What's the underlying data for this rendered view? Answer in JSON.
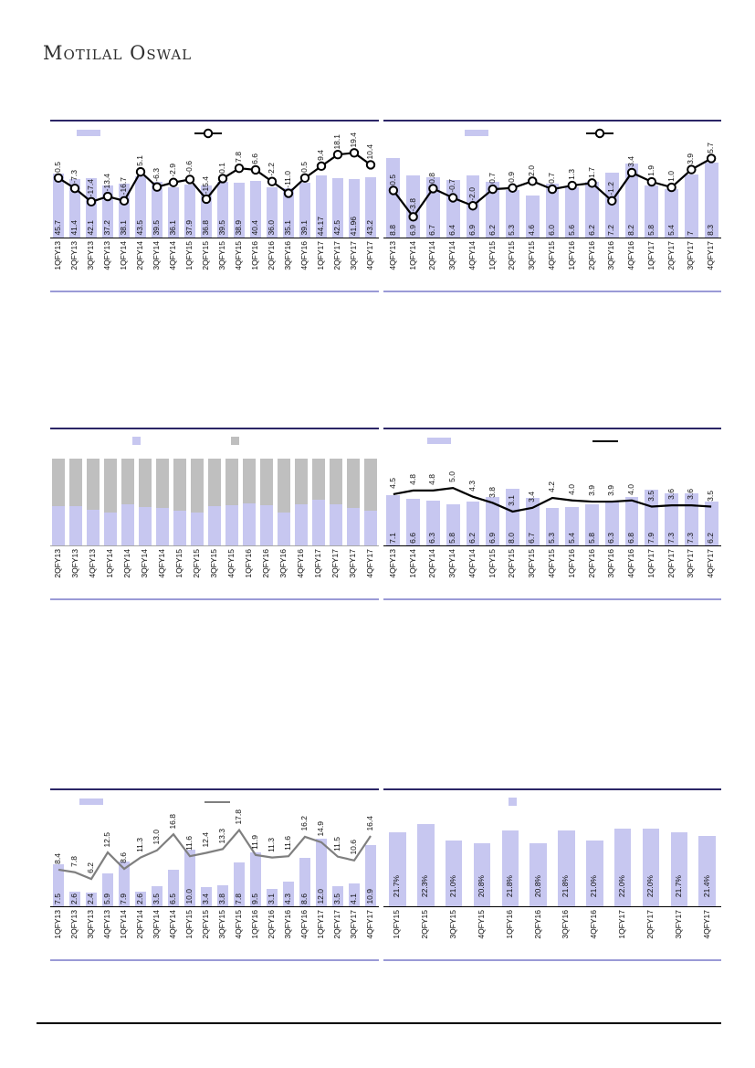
{
  "page": {
    "brand": "Motilal Oswal"
  },
  "colors": {
    "bar_fill": "#c7c7f0",
    "stack_gray_fill": "#bfbfbf",
    "line_black": "#000000",
    "line_gray": "#7f7f7f",
    "chart_top_rule": "#2b2566",
    "chart_bottom_rule": "#9a9ad6",
    "footer_rule": "#000000"
  },
  "chart_data": [
    {
      "name": "top-left-bar-line",
      "type": "bar+line",
      "legend_swatches": [
        "bar",
        "line-marker"
      ],
      "categories": [
        "1QFY13",
        "2QFY13",
        "3QFY13",
        "4QFY13",
        "1QFY14",
        "2QFY14",
        "3QFY14",
        "4QFY14",
        "1QFY15",
        "2QFY15",
        "3QFY15",
        "4QFY15",
        "1QFY16",
        "2QFY16",
        "3QFY16",
        "4QFY16",
        "1QFY17",
        "2QFY17",
        "3QFY17",
        "4QFY17"
      ],
      "bar_labels": [
        "45.7",
        "41.4",
        "42.1",
        "37.2",
        "38.1",
        "43.5",
        "39.5",
        "36.1",
        "37.9",
        "36.8",
        "39.5",
        "38.9",
        "40.4",
        "36.0",
        "35.1",
        "39.1",
        "44.17",
        "42.5",
        "41.96",
        "43.2"
      ],
      "line_labels": [
        "0.5",
        "-7.3",
        "-17.4",
        "-13.4",
        "-16.7",
        "5.1",
        "-6.3",
        "-2.9",
        "-0.6",
        "-15.4",
        "0.1",
        "7.8",
        "6.6",
        "-2.2",
        "-11.0",
        "0.5",
        "9.4",
        "18.1",
        "19.4",
        "10.4"
      ]
    },
    {
      "name": "top-right-bar-line",
      "type": "bar+line",
      "legend_swatches": [
        "bar",
        "line-marker"
      ],
      "categories": [
        "4QFY13",
        "1QFY14",
        "2QFY14",
        "3QFY14",
        "4QFY14",
        "1QFY15",
        "2QFY15",
        "3QFY15",
        "4QFY15",
        "1QFY16",
        "2QFY16",
        "3QFY16",
        "4QFY16",
        "1QFY17",
        "2QFY17",
        "3QFY17",
        "4QFY17"
      ],
      "bar_labels": [
        "8.8",
        "6.9",
        "6.7",
        "6.4",
        "6.9",
        "6.2",
        "5.3",
        "4.6",
        "6.0",
        "5.6",
        "6.2",
        "7.2",
        "8.2",
        "5.8",
        "5.4",
        "7",
        "8.3"
      ],
      "line_labels": [
        "0.5",
        "-3.8",
        "0.8",
        "-0.7",
        "-2.0",
        "0.7",
        "0.9",
        "2.0",
        "0.7",
        "1.3",
        "1.7",
        "-1.2",
        "3.4",
        "1.9",
        "1.0",
        "3.9",
        "5.7"
      ]
    },
    {
      "name": "mid-left-stacked",
      "type": "stacked-bar",
      "legend_swatches": [
        "purple-square",
        "gray-square"
      ],
      "categories": [
        "2QFY13",
        "3QFY13",
        "4QFY13",
        "1QFY14",
        "2QFY14",
        "3QFY14",
        "4QFY14",
        "1QFY15",
        "2QFY15",
        "3QFY15",
        "4QFY15",
        "1QFY16",
        "2QFY16",
        "3QFY16",
        "4QFY16",
        "1QFY17",
        "2QFY17",
        "3QFY17",
        "4QFY17"
      ],
      "note": "no data labels printed; purple share estimated from pixels, gray = remainder to 100",
      "purple_pct_est": [
        45,
        45,
        41,
        38,
        47,
        44,
        43,
        40,
        38,
        45,
        46,
        49,
        46,
        38,
        47,
        53,
        48,
        43,
        40
      ],
      "total_pct": 100
    },
    {
      "name": "mid-right-bar-line",
      "type": "bar+line",
      "legend_swatches": [
        "bar",
        "line-plain"
      ],
      "categories": [
        "4QFY13",
        "1QFY14",
        "2QFY14",
        "3QFY14",
        "4QFY14",
        "1QFY15",
        "2QFY15",
        "3QFY15",
        "4QFY15",
        "1QFY16",
        "2QFY16",
        "3QFY16",
        "4QFY16",
        "1QFY17",
        "2QFY17",
        "3QFY17",
        "4QFY17"
      ],
      "bar_labels": [
        "7.1",
        "6.6",
        "6.3",
        "5.8",
        "6.2",
        "6.9",
        "8.0",
        "6.7",
        "5.3",
        "5.4",
        "5.8",
        "6.3",
        "6.8",
        "7.9",
        "7.3",
        "7.3",
        "6.2"
      ],
      "line_labels": [
        "4.5",
        "4.8",
        "4.8",
        "5.0",
        "4.3",
        "3.8",
        "3.1",
        "3.4",
        "4.2",
        "4.0",
        "3.9",
        "3.9",
        "4.0",
        "3.5",
        "3.6",
        "3.6",
        "3.5"
      ]
    },
    {
      "name": "bottom-left-bar-line",
      "type": "bar+line",
      "legend_swatches": [
        "bar",
        "line-plain-gray"
      ],
      "categories": [
        "1QFY13",
        "2QFY13",
        "3QFY13",
        "4QFY13",
        "1QFY14",
        "2QFY14",
        "3QFY14",
        "4QFY14",
        "1QFY15",
        "2QFY15",
        "3QFY15",
        "4QFY15",
        "1QFY16",
        "2QFY16",
        "3QFY16",
        "4QFY16",
        "1QFY17",
        "2QFY17",
        "3QFY17",
        "4QFY17"
      ],
      "bar_labels": [
        "7.5",
        "2.6",
        "2.4",
        "5.9",
        "7.9",
        "2.6",
        "3.5",
        "6.5",
        "10.0",
        "3.4",
        "3.8",
        "7.8",
        "9.5",
        "3.1",
        "4.3",
        "8.6",
        "12.0",
        "3.5",
        "4.1",
        "10.9"
      ],
      "line_labels": [
        "8.4",
        "7.8",
        "6.2",
        "12.5",
        "8.6",
        "11.3",
        "13.0",
        "16.8",
        "11.6",
        "12.4",
        "13.3",
        "17.8",
        "11.9",
        "11.3",
        "11.6",
        "16.2",
        "14.9",
        "11.5",
        "10.6",
        "16.4"
      ]
    },
    {
      "name": "bottom-right-bar",
      "type": "bar",
      "legend_swatches": [
        "purple-square"
      ],
      "categories": [
        "1QFY15",
        "2QFY15",
        "3QFY15",
        "4QFY15",
        "1QFY16",
        "2QFY16",
        "3QFY16",
        "4QFY16",
        "1QFY17",
        "2QFY17",
        "3QFY17",
        "4QFY17"
      ],
      "bar_labels": [
        "21.7%",
        "22.3%",
        "21.0%",
        "20.8%",
        "21.8%",
        "20.8%",
        "21.8%",
        "21.0%",
        "22.0%",
        "22.0%",
        "21.7%",
        "21.4%"
      ]
    }
  ]
}
